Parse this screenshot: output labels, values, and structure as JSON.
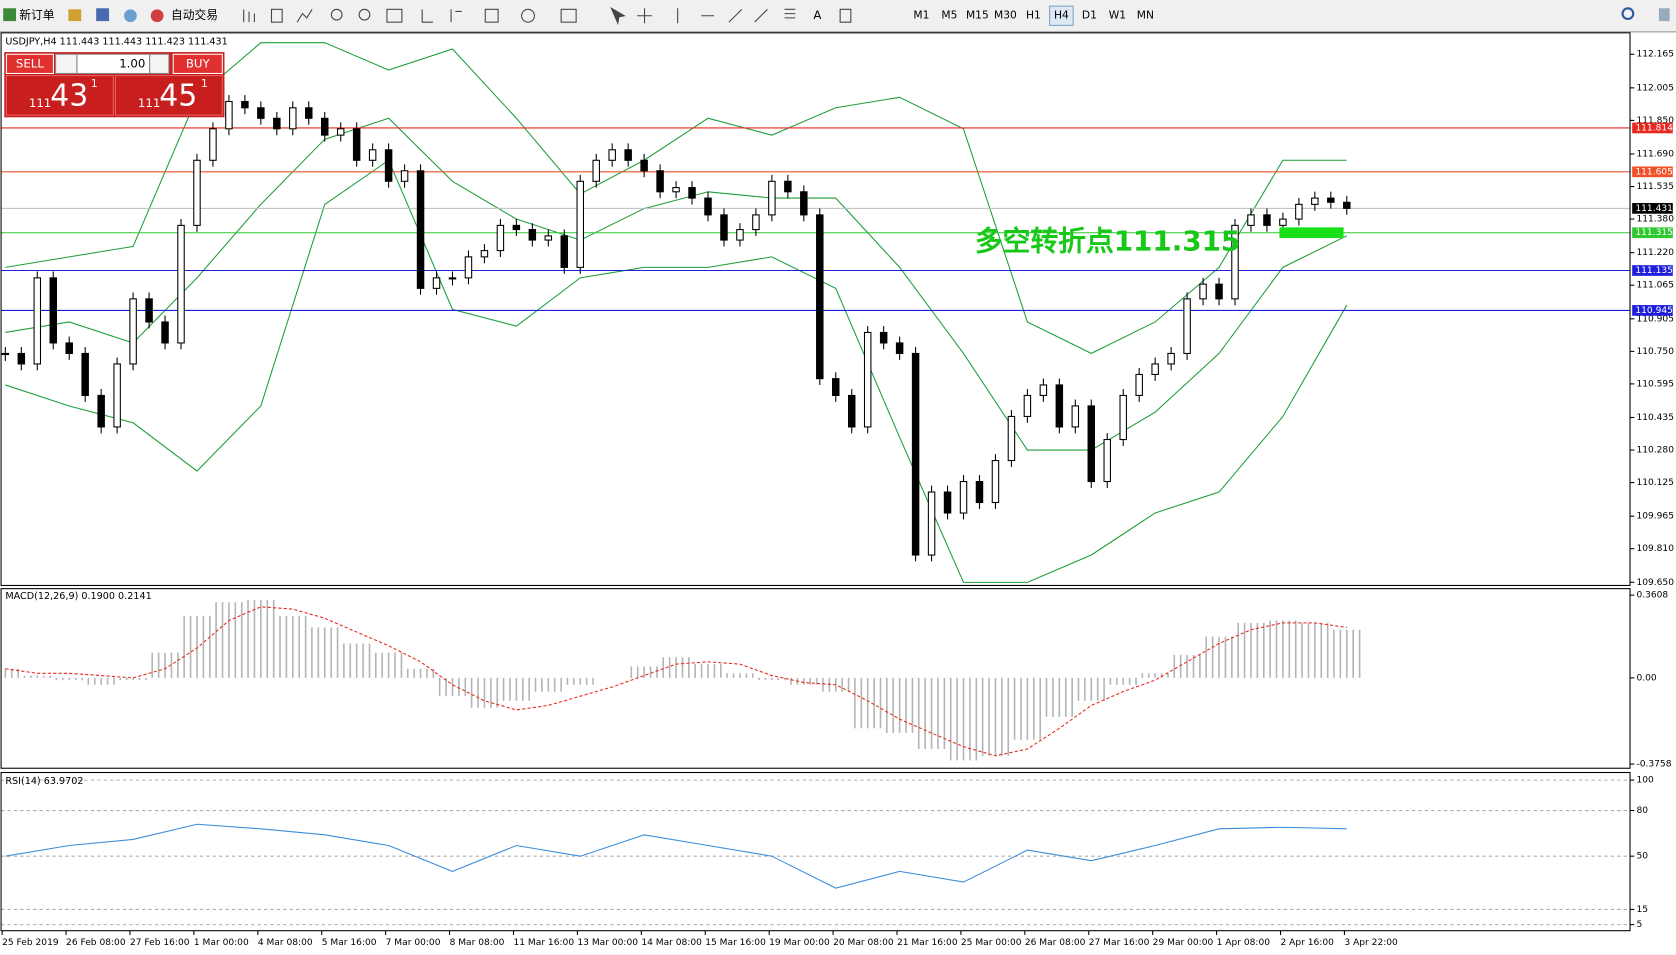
{
  "toolbar": {
    "new_order": "新订单",
    "auto_trade": "自动交易",
    "timeframes": [
      "M1",
      "M5",
      "M15",
      "M30",
      "H1",
      "H4",
      "D1",
      "W1",
      "MN"
    ],
    "active_timeframe": 5
  },
  "trade_panel": {
    "sell": "SELL",
    "buy": "BUY",
    "lots": "1.00",
    "sell_big": "111",
    "sell_main": "43",
    "sell_sup": "1",
    "buy_big": "111",
    "buy_main": "45",
    "buy_sup": "1"
  },
  "chart_data": [
    {
      "type": "candlestick",
      "title": "USDJPY,H4  111.443 111.443 111.423 111.431",
      "closes": [
        110.74,
        110.69,
        111.1,
        110.79,
        110.74,
        110.54,
        110.39,
        110.69,
        111.0,
        110.89,
        110.79,
        111.35,
        111.66,
        111.81,
        111.94,
        111.91,
        111.86,
        111.81,
        111.91,
        111.86,
        111.78,
        111.81,
        111.66,
        111.71,
        111.56,
        111.61,
        111.05,
        111.1,
        111.1,
        111.2,
        111.23,
        111.35,
        111.33,
        111.28,
        111.3,
        111.15,
        111.56,
        111.66,
        111.71,
        111.66,
        111.61,
        111.51,
        111.53,
        111.48,
        111.4,
        111.28,
        111.33,
        111.4,
        111.56,
        111.51,
        111.4,
        110.62,
        110.54,
        110.39,
        110.84,
        110.79,
        110.74,
        109.78,
        110.08,
        109.98,
        110.13,
        110.03,
        110.23,
        110.44,
        110.54,
        110.59,
        110.39,
        110.49,
        110.13,
        110.33,
        110.54,
        110.64,
        110.69,
        110.74,
        111.0,
        111.07,
        111.0,
        111.35,
        111.4,
        111.35,
        111.38,
        111.45,
        111.48,
        111.46,
        111.431
      ],
      "series": [
        {
          "name": "BB upper",
          "color": "#1e9e3c",
          "values": [
            111.15,
            111.2,
            111.25,
            111.96,
            112.22,
            112.22,
            112.09,
            112.19,
            111.86,
            111.5,
            111.66,
            111.86,
            111.78,
            111.91,
            111.96,
            111.81,
            110.89,
            110.74,
            110.89,
            111.15,
            111.66,
            111.66
          ]
        },
        {
          "name": "BB middle",
          "color": "#1e9e3c",
          "values": [
            110.84,
            110.89,
            110.79,
            111.1,
            111.45,
            111.76,
            111.86,
            111.56,
            111.38,
            111.28,
            111.43,
            111.51,
            111.48,
            111.48,
            111.15,
            110.74,
            110.28,
            110.28,
            110.46,
            110.74,
            111.15,
            111.3
          ]
        },
        {
          "name": "BB lower",
          "color": "#1e9e3c",
          "values": [
            110.59,
            110.49,
            110.41,
            110.18,
            110.49,
            111.45,
            111.66,
            110.95,
            110.87,
            111.1,
            111.15,
            111.15,
            111.2,
            111.05,
            110.34,
            109.65,
            109.65,
            109.78,
            109.98,
            110.08,
            110.44,
            110.97
          ]
        }
      ],
      "levels": [
        {
          "value": 111.814,
          "color": "#e8281e"
        },
        {
          "value": 111.605,
          "color": "#f0502a"
        },
        {
          "value": 111.315,
          "color": "#2ec82e"
        },
        {
          "value": 111.135,
          "color": "#1e1edc"
        },
        {
          "value": 110.945,
          "color": "#1e1edc"
        }
      ],
      "current_price": 111.431,
      "annotation": "多空转折点111.315",
      "ylim": [
        109.635,
        112.267
      ],
      "yticks": [
        112.165,
        112.005,
        {
          "value": 111.85,
          "label": "111.850"
        },
        {
          "value": 111.69,
          "label": "111.690"
        },
        111.535,
        {
          "value": 111.38,
          "label": "111.380"
        },
        {
          "value": 111.22,
          "label": "111.220"
        },
        111.065,
        110.905,
        {
          "value": 110.75,
          "label": "110.750"
        },
        110.595,
        110.435,
        {
          "value": 110.28,
          "label": "110.280"
        },
        110.125,
        109.965,
        {
          "value": 109.81,
          "label": "109.810"
        },
        {
          "value": 109.65,
          "label": "109.650"
        }
      ]
    },
    {
      "type": "macd",
      "title": "MACD(12,26,9) 0.1900 0.2141",
      "series": [
        {
          "name": "histogram",
          "color": "#b4b4b4",
          "values": [
            0.04,
            0.01,
            -0.01,
            -0.03,
            -0.01,
            0.11,
            0.27,
            0.33,
            0.34,
            0.27,
            0.22,
            0.15,
            0.11,
            0.04,
            -0.08,
            -0.13,
            -0.1,
            -0.06,
            -0.03,
            0.0,
            0.05,
            0.09,
            0.06,
            0.02,
            -0.01,
            -0.03,
            -0.06,
            -0.22,
            -0.24,
            -0.31,
            -0.36,
            -0.34,
            -0.27,
            -0.17,
            -0.1,
            -0.03,
            0.02,
            0.1,
            0.18,
            0.24,
            0.25,
            0.24,
            0.21
          ]
        },
        {
          "name": "signal",
          "color": "#e8281e",
          "values": [
            0.04,
            0.02,
            0.02,
            0.01,
            0,
            0.04,
            0.13,
            0.25,
            0.31,
            0.3,
            0.26,
            0.2,
            0.14,
            0.07,
            -0.03,
            -0.1,
            -0.14,
            -0.12,
            -0.08,
            -0.04,
            0.01,
            0.06,
            0.07,
            0.06,
            0.01,
            -0.02,
            -0.03,
            -0.1,
            -0.18,
            -0.24,
            -0.3,
            -0.34,
            -0.31,
            -0.22,
            -0.12,
            -0.06,
            -0.01,
            0.07,
            0.15,
            0.21,
            0.24,
            0.24,
            0.22
          ]
        }
      ],
      "ylim": [
        -0.394,
        0.389
      ],
      "yticks": [
        0.3608,
        {
          "value": 0,
          "label": "0.00"
        },
        -0.3758
      ]
    },
    {
      "type": "rsi",
      "title": "RSI(14) 63.9702",
      "series": [
        {
          "name": "RSI",
          "color": "#3c8cdc",
          "values": [
            50,
            57,
            61,
            71,
            68,
            64,
            57,
            40,
            57,
            50,
            64,
            57,
            50,
            29,
            40,
            33,
            54,
            47,
            57,
            68,
            69,
            68
          ]
        }
      ],
      "ylim": [
        1,
        105
      ],
      "yticks": [
        100,
        80,
        50,
        15,
        5
      ],
      "categories": [
        "25 Feb 2019",
        "26 Feb 08:00",
        "27 Feb 16:00",
        "1 Mar 00:00",
        "4 Mar 08:00",
        "5 Mar 16:00",
        "7 Mar 00:00",
        "8 Mar 08:00",
        "11 Mar 16:00",
        "13 Mar 00:00",
        "14 Mar 08:00",
        "15 Mar 16:00",
        "19 Mar 00:00",
        "20 Mar 08:00",
        "21 Mar 16:00",
        "25 Mar 00:00",
        "26 Mar 08:00",
        "27 Mar 16:00",
        "29 Mar 00:00",
        "1 Apr 08:00",
        "2 Apr 16:00",
        "3 Apr 22:00"
      ]
    }
  ]
}
